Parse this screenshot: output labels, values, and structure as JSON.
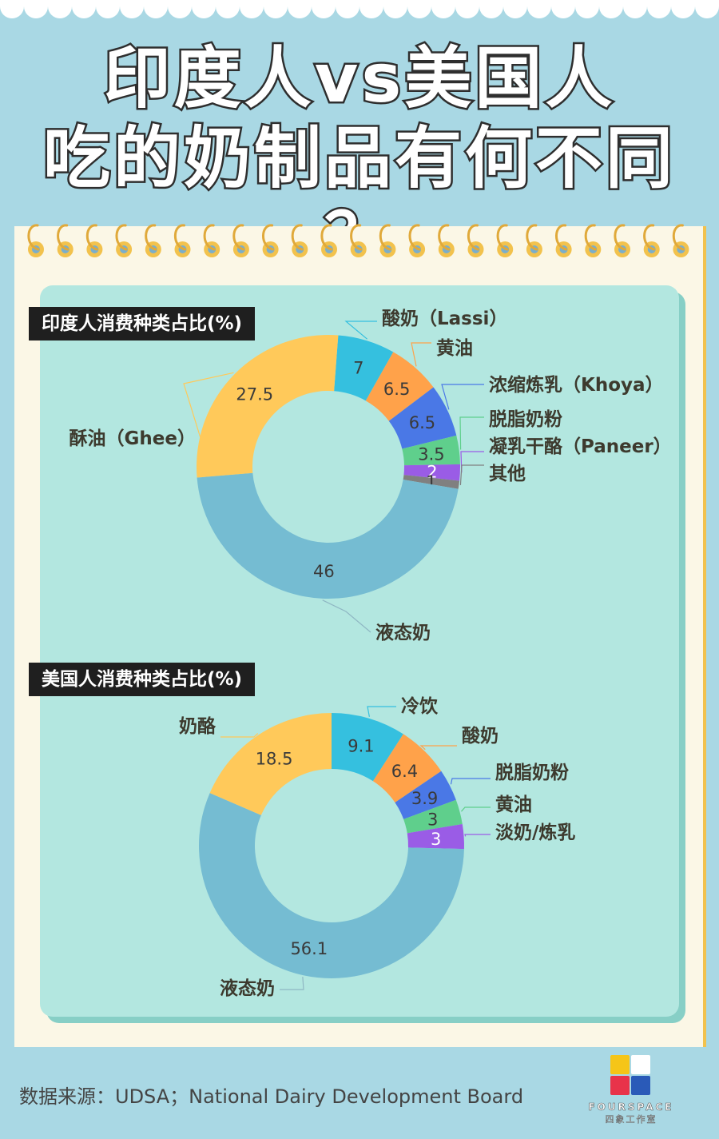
{
  "title_line1": "印度人vs美国人",
  "title_line2": "吃的奶制品有何不同 ？",
  "source": "数据来源：UDSA；National Dairy Development Board",
  "logo": {
    "en": "FOURSPACE",
    "zh": "四象工作室"
  },
  "colors": {
    "cyan": "#35c0df",
    "orange": "#ffa24a",
    "blue": "#4a78e6",
    "green": "#5fcf8c",
    "purple": "#9a5ce6",
    "gray": "#808080",
    "lightblue": "#75bcd2",
    "yellow": "#ffc95a"
  },
  "chart_data": [
    {
      "type": "pie",
      "title": "印度人消费种类占比(%)",
      "series": [
        {
          "name": "酸奶（Lassi）",
          "value": 7,
          "color": "#35c0df",
          "label_color": "#3a3a3a"
        },
        {
          "name": "黄油",
          "value": 6.5,
          "color": "#ffa24a",
          "label_color": "#3a3a3a"
        },
        {
          "name": "浓缩炼乳（Khoya）",
          "value": 6.5,
          "color": "#4a78e6",
          "label_color": "#3a3a3a"
        },
        {
          "name": "脱脂奶粉",
          "value": 3.5,
          "color": "#5fcf8c",
          "label_color": "#3a3a3a"
        },
        {
          "name": "凝乳干酪（Paneer）",
          "value": 2,
          "color": "#9a5ce6",
          "label_color": "#ffffff"
        },
        {
          "name": "其他",
          "value": 1,
          "color": "#808080",
          "label_color": "#3a3a3a"
        },
        {
          "name": "液态奶",
          "value": 46,
          "color": "#75bcd2",
          "label_color": "#3a3a3a"
        },
        {
          "name": "酥油（Ghee）",
          "value": 27.5,
          "color": "#ffc95a",
          "label_color": "#3a3a3a"
        }
      ]
    },
    {
      "type": "pie",
      "title": "美国人消费种类占比(%)",
      "series": [
        {
          "name": "冷饮",
          "value": 9.1,
          "color": "#35c0df",
          "label_color": "#3a3a3a"
        },
        {
          "name": "酸奶",
          "value": 6.4,
          "color": "#ffa24a",
          "label_color": "#3a3a3a"
        },
        {
          "name": "脱脂奶粉",
          "value": 3.9,
          "color": "#4a78e6",
          "label_color": "#3a3a3a"
        },
        {
          "name": "黄油",
          "value": 3,
          "color": "#5fcf8c",
          "label_color": "#3a3a3a"
        },
        {
          "name": "淡奶/炼乳",
          "value": 3,
          "color": "#9a5ce6",
          "label_color": "#ffffff"
        },
        {
          "name": "液态奶",
          "value": 56.1,
          "color": "#75bcd2",
          "label_color": "#3a3a3a"
        },
        {
          "name": "奶酪",
          "value": 18.5,
          "color": "#ffc95a",
          "label_color": "#3a3a3a"
        }
      ]
    }
  ]
}
